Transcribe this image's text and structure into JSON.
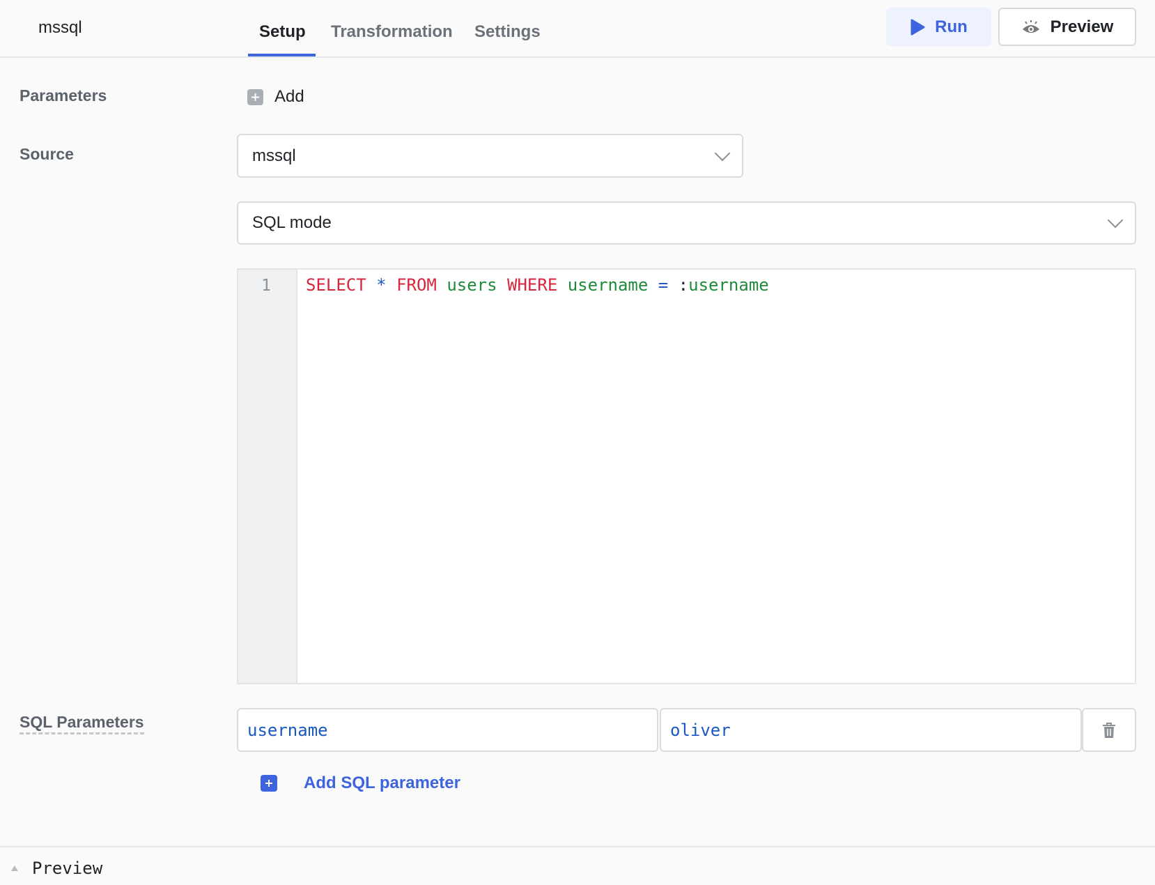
{
  "header": {
    "title": "mssql",
    "tabs": [
      {
        "label": "Setup",
        "active": true
      },
      {
        "label": "Transformation"
      },
      {
        "label": "Settings"
      }
    ],
    "run_label": "Run",
    "preview_label": "Preview"
  },
  "parameters": {
    "label": "Parameters",
    "add_label": "Add"
  },
  "source": {
    "label": "Source",
    "value": "mssql"
  },
  "mode": {
    "value": "SQL mode"
  },
  "editor": {
    "line_number": "1",
    "tokens": [
      "SELECT",
      " ",
      "*",
      " ",
      "FROM",
      " ",
      "users",
      " ",
      "WHERE",
      " ",
      "username",
      " ",
      "=",
      " ",
      ":",
      "username"
    ]
  },
  "sql_parameters": {
    "label": "SQL Parameters",
    "rows": [
      {
        "key": "username",
        "value": "oliver"
      }
    ],
    "add_label": "Add SQL parameter"
  },
  "footer": {
    "preview_label": "Preview"
  },
  "colors": {
    "accent": "#3d63dd",
    "keyword": "#d7263d",
    "identifier": "#1f8a3a",
    "operator": "#2458c6"
  }
}
